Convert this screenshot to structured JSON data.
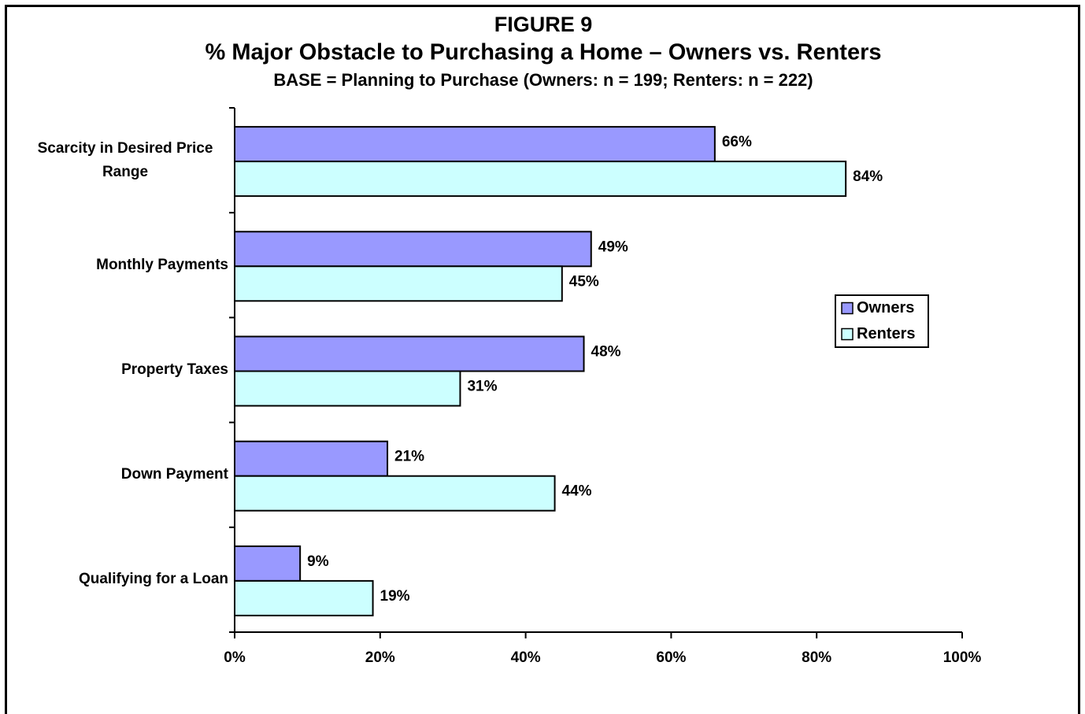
{
  "chart_data": {
    "type": "bar",
    "orientation": "horizontal",
    "title": "FIGURE 9",
    "subtitle": "% Major Obstacle to Purchasing a Home – Owners vs. Renters",
    "base_note": "BASE = Planning to Purchase (Owners: n = 199; Renters: n = 222)",
    "categories": [
      "Scarcity in Desired Price Range",
      "Monthly Payments",
      "Property Taxes",
      "Down Payment",
      "Qualifying for a Loan"
    ],
    "series": [
      {
        "name": "Owners",
        "color": "#9999ff",
        "values": [
          66,
          49,
          48,
          21,
          9
        ],
        "value_labels": [
          "66%",
          "49%",
          "48%",
          "21%",
          "9%"
        ]
      },
      {
        "name": "Renters",
        "color": "#ccffff",
        "values": [
          84,
          45,
          31,
          44,
          19
        ],
        "value_labels": [
          "84%",
          "45%",
          "31%",
          "44%",
          "19%"
        ]
      }
    ],
    "xlim": [
      0,
      100
    ],
    "xticks": [
      {
        "value": 0,
        "label": "0%"
      },
      {
        "value": 20,
        "label": "20%"
      },
      {
        "value": 40,
        "label": "40%"
      },
      {
        "value": 60,
        "label": "60%"
      },
      {
        "value": 80,
        "label": "80%"
      },
      {
        "value": 100,
        "label": "100%"
      }
    ],
    "grid": false,
    "legend": "right"
  }
}
